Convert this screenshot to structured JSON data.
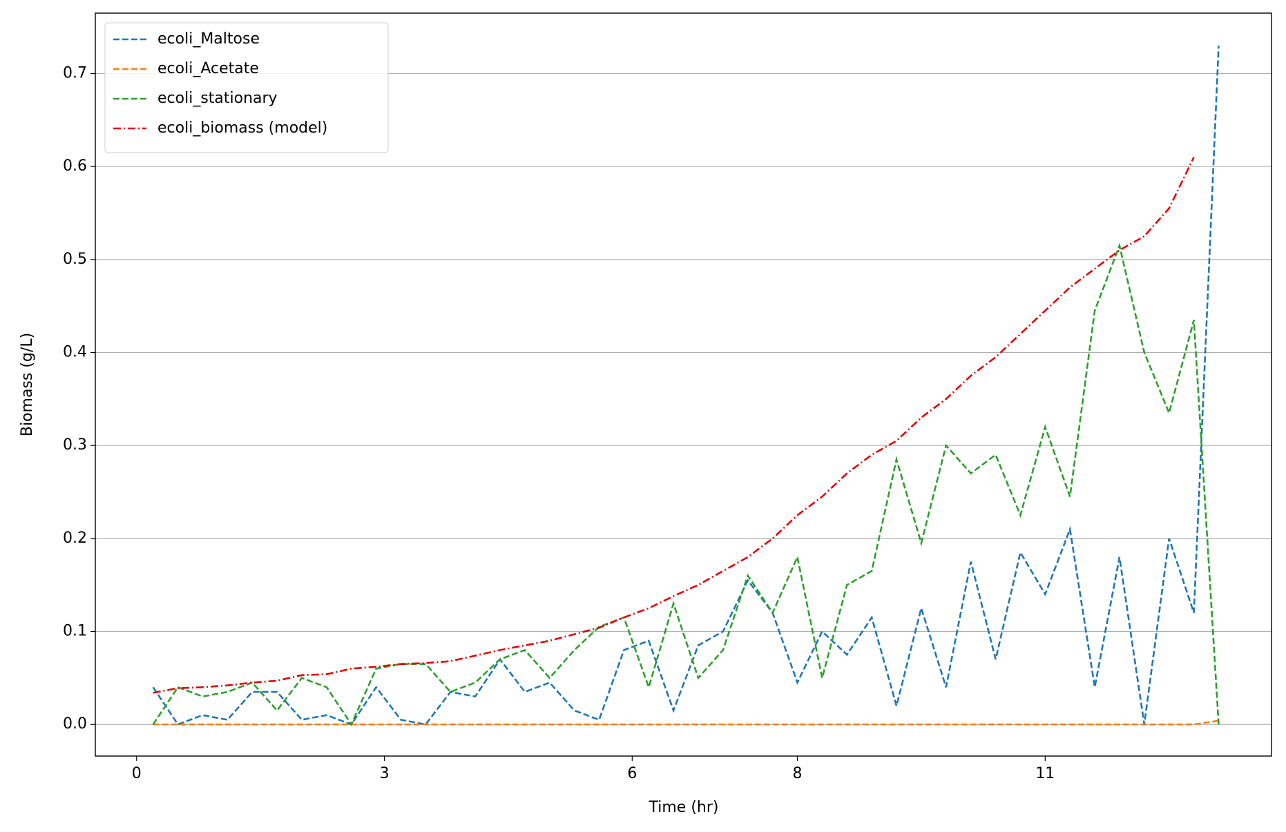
{
  "chart_data": {
    "type": "line",
    "x_label": "Time (hr)",
    "y_label": "Biomass (g/L)",
    "x": [
      0.2,
      0.5,
      0.8,
      1.1,
      1.4,
      1.7,
      2.0,
      2.3,
      2.6,
      2.9,
      3.2,
      3.5,
      3.8,
      4.1,
      4.4,
      4.7,
      5.0,
      5.3,
      5.6,
      5.9,
      6.2,
      6.5,
      6.8,
      7.1,
      7.4,
      7.7,
      8.0,
      8.3,
      8.6,
      8.9,
      9.2,
      9.5,
      9.8,
      10.1,
      10.4,
      10.7,
      11.0,
      11.3,
      11.6,
      11.9,
      12.2,
      12.5,
      12.8,
      13.1
    ],
    "series": [
      {
        "name": "ecoli_Maltose",
        "color": "#1f77b4",
        "dash": "dashed",
        "values": [
          0.04,
          0.0,
          0.01,
          0.005,
          0.035,
          0.035,
          0.005,
          0.01,
          0.0,
          0.04,
          0.005,
          0.0,
          0.035,
          0.03,
          0.07,
          0.035,
          0.045,
          0.015,
          0.005,
          0.08,
          0.09,
          0.015,
          0.085,
          0.1,
          0.155,
          0.12,
          0.045,
          0.1,
          0.075,
          0.115,
          0.02,
          0.125,
          0.04,
          0.175,
          0.07,
          0.185,
          0.14,
          0.21,
          0.04,
          0.18,
          0.0,
          0.2,
          0.12,
          0.73
        ]
      },
      {
        "name": "ecoli_Acetate",
        "color": "#ff7f0e",
        "dash": "dashed",
        "values": [
          0,
          0,
          0,
          0,
          0,
          0,
          0,
          0,
          0,
          0,
          0,
          0,
          0,
          0,
          0,
          0,
          0,
          0,
          0,
          0,
          0,
          0,
          0,
          0,
          0,
          0,
          0,
          0,
          0,
          0,
          0,
          0,
          0,
          0,
          0,
          0,
          0,
          0,
          0,
          0,
          0,
          0,
          0,
          0.004
        ]
      },
      {
        "name": "ecoli_stationary",
        "color": "#2ca02c",
        "dash": "dashed",
        "values": [
          0,
          0.04,
          0.03,
          0.035,
          0.045,
          0.015,
          0.05,
          0.04,
          0.0,
          0.06,
          0.065,
          0.065,
          0.035,
          0.045,
          0.07,
          0.08,
          0.05,
          0.08,
          0.105,
          0.115,
          0.04,
          0.13,
          0.05,
          0.08,
          0.16,
          0.12,
          0.18,
          0.05,
          0.15,
          0.165,
          0.285,
          0.195,
          0.3,
          0.27,
          0.29,
          0.225,
          0.32,
          0.245,
          0.445,
          0.515,
          0.4,
          0.335,
          0.435,
          0.0
        ]
      },
      {
        "name": "ecoli_biomass (model)",
        "color": "#e50000",
        "dash": "dashdot",
        "values": [
          0.034,
          0.039,
          0.04,
          0.042,
          0.045,
          0.047,
          0.053,
          0.054,
          0.06,
          0.062,
          0.065,
          0.066,
          0.068,
          0.074,
          0.08,
          0.085,
          0.09,
          0.097,
          0.104,
          0.115,
          0.125,
          0.138,
          0.15,
          0.165,
          0.18,
          0.2,
          0.225,
          0.245,
          0.27,
          0.29,
          0.305,
          0.33,
          0.35,
          0.375,
          0.395,
          0.42,
          0.445,
          0.47,
          0.49,
          0.51,
          0.525,
          0.555,
          0.61,
          null
        ]
      }
    ],
    "xlim": [
      -0.5,
      13.74
    ],
    "xticks": [
      0,
      3,
      6,
      8,
      11
    ],
    "ylim": [
      -0.034,
      0.765
    ],
    "yticks": [
      {
        "value": 0,
        "label": "0.0"
      },
      0.1,
      0.2,
      0.3,
      0.4,
      0.5,
      0.6,
      0.7
    ],
    "grid": "y",
    "legend": "upper left"
  }
}
